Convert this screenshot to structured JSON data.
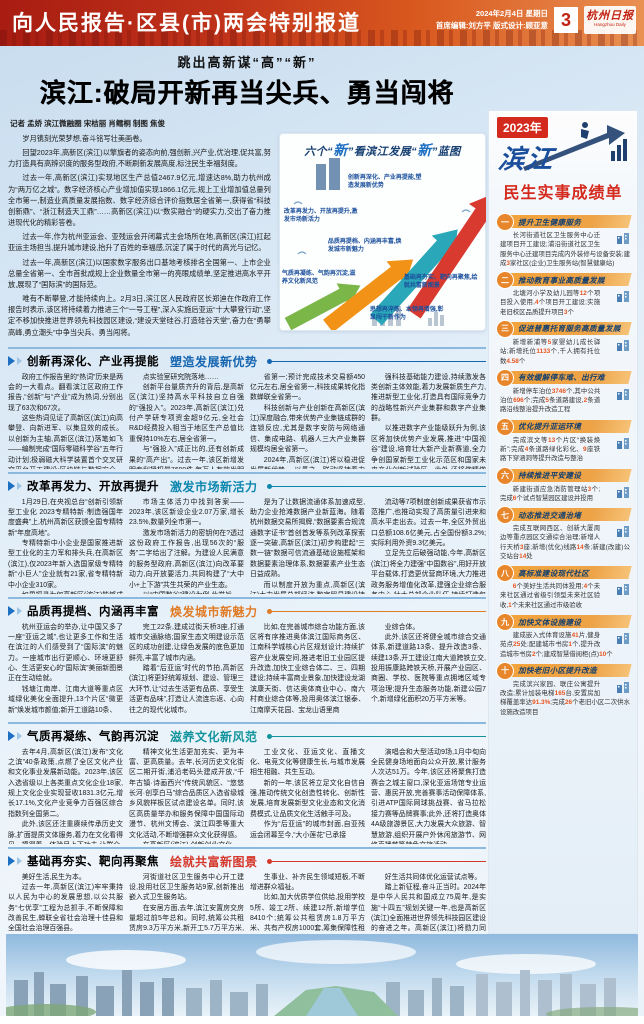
{
  "banner": {
    "title": "向人民报告·区县(市)两会特别报道",
    "date": "2024年2月4日 星期日",
    "editors": "首席编辑:刘方平 版式设计:顾亚意",
    "page_number": "3",
    "paper_name": "杭州日报",
    "paper_name_en": "Hangzhou Daily"
  },
  "article": {
    "kicker": "跳出高新谋“高”“新”",
    "headline": "滨江:破局开新再当尖兵、勇当闯将",
    "byline": "记者 孟娇 滨江微融圈 宋桔丽 肖鳕桐 制图 焦俊",
    "intro": [
      "岁月镌刻光荣梦想,奋斗铭写壮美画卷。",
      "回望2023年,高新区(滨江)以擎旗者的姿态向前,强创新,兴产业,优治理,促共富,努力打造具有高辨识度的服务型政府,不断刷新发展高度,标注民生幸福刻度。",
      "过去一年,高新区(滨江)实现地区生产总值2467.9亿元,增速达8%,助力杭州成为“两万亿之城”。数字经济核心产业增加值实现1866.1亿元,规上工业增加值总量列全市第一,制造业高质量发展指数、数字经济综合评价指数居全省第一,获得省“科技创新鼎”、“浙江制造天工鼎”……高新区(滨江)以“数实融合”的硬实力,交出了奋力推进现代化的精彩答卷。",
      "过去一年,作为杭州亚运会、亚残运会开闭幕式主会场所在地,高新区(滨江)扛起亚运主场担当,提升城市建设,抬升了百姓的幸福感,沉淀了属于时代的高光与记忆。",
      "过去一年,高新区(滨江)以国家数字服务出口基地考核排名全国第一、上市企业总量全省第一、全市首批成规上企业数量全市第一的亮眼成绩单,坚定推进高水平开放,展现了“国际滨”的国际范。",
      "唯有不断攀登,才能持续向上。2月3日,滨江区人民政府区长郑迪在作政府工作报告时表示,该区将持续着力推进三个“一号工程”,深入实施后亚运“十大攀登行动”,坚定不移加快推进世界领先科技园区建设,“建设天堂硅谷,打造硅谷天堂”,奋力在“勇攀高峰,勇立潮头”中争当尖兵、勇当闯将。"
    ],
    "sections": [
      {
        "title": "创新再深化、产业再提能",
        "subtitle": "塑造发展新优势",
        "color": "#1565b0",
        "columns": [
          "政府工作报告里的“热词”历来是两会的一大看点。翻看滨江区政府工作报告,“创新”与“产业”成为热词,分别出现了63次和67次。\n这些热词见证了高新区(滨江)向高攀登、向新进军、以集显效的成长。以创新为主轴,高新区(滨江)落笔如飞——编制完成“国际零磁科学谷”五年行动计划;极弱磁大科学装置首个交叉研究平台开工建设;区块链与数据安全、心血管植入器械两个全国重",
          "点实验室研究院落地……\n创新平台量质齐升的背后,是高新区(滨江)坚持高水平科技自立自强的“强投入”。2023年,高新区(滨江)兑付产学研专项资金超9亿元,全社会R&D经费投入相当于地区生产总值比重保持10%左右,居全省第一。\n与“强投入”成正比的,还有创新成果的“高产出”。过去一年,该区新增发明专利授权量7699件,每万人有效发明专利拥有量超700件,均保持全",
          "省第一;预计完成技术交易额450亿元左右,居全省第一,科技成果转化指数蝉联全省第一。\n科技创新与产业创新在高新区(滨江)深度融合,带来优势产业集链成群的连锁反应,尤其是数字安防与网络通信、集成电路、机器人三大产业集群规模均居全省第一。\n2024年,高新区(滨江)将以稳进促发展新优势,一以贯之、联动坚持着力稳中求进扩增量,以科技创新为引领,加",
          "强科技基础能力建设,持续激发各类创新主体效能,着力发展新质生产力,推进新型工业化,打造具有国际竞争力的战略性新兴产业集群和数字产业集群。\n以推进数字产业能级跃升为例,该区将加快优势产业发展,推进“中国视谷”建设,培育壮大新产业新赛道,全力争创国家新型工业化示范区和国家未来产业创新试验区。此外,还将做精做强特色小镇,深化完善楼宇、园区特色园(区)协同发展机制。"
        ]
      },
      {
        "title": "改革再发力、开放再提升",
        "subtitle": "激发市场新活力",
        "color": "#0d86ae",
        "columns": [
          "1月29日,在央视总台“创新引领新型工业化 2023专精特新·制造强国年度盛典”上,杭州高新区获颁全国专精特新“年度高地”。\n专精特新中小企业是国家推进新型工业化的主力军和排头兵,在高新区(滨江),仅2023年新入选国家级专精特新“小巨人”企业就有21家,省专精特新中小企业310家。\n如果探寻为何高新区(滨江)能够成为全国专精特新高地,或许可以从",
          "市场主体活力中找到答案——2023年,该区新设企业2.07万家,增长23.5%,数量列全市第一。\n激发市场新活力的密钥何在?透过这份政府工作报告,出现56次的“服务”二字给出了注解。为建设人民满意的服务型政府,高新区(滨江)向改革要动力,向开放要活力,共同构建了“大中小+上下游”共生共荣的产业生态。\n以“中国数谷”建设为例,此举旨",
          "是为了让数据流通体系加速成型,助力企业抢滩数据产业新蓝海。随着杭州数据交易所揭牌,“数据要素合规流通数字证书”首创首发等系列改革探索逐一突破,高新区(滨江)初步构建起“三数一链”数据可信流通基础设施框架和数据要素治理体系,数据要素产业生态日益成熟。\n而以制度开放为重点,高新区(滨江)大力发展总部经济,数字贸易建设持续发力,跨境支付、便利化数据跨境",
          "流动等7项制度创新成果获省市示范推广,也推动实现了高质量引进来和高水平走出去。过去一年,全区外贸出口总额108.6亿美元,占全国份额3.2%;实际利用外资9.3亿美元。\n立足先立后破强动能,今年,高新区(滨江)将全力建强“中国数谷”,用好开放平台载体,打造更优营商环境,大力推进政务服务增值化改革,建强企业综合服务中心,壮大总部企业队伍,持续打造包容开放的市场环境。"
        ]
      },
      {
        "title": "品质再提档、内涵再丰富",
        "subtitle": "焕发城市新魅力",
        "color": "#e07b26",
        "columns": [
          "杭州亚运会的举办,让中国又多了一座“亚运之城”,也让更多工作和生活在滨江的人们感受到了“国际滨”的魅力。一座城市出行更顺心、环境更舒心、生活更安心的“国际滨”美丽新图景正在生动绘就。\n钱塘江南岸、江南大道等重点区域绿化美化全面提升,13个片区“微更新”焕发城市颜值;新开工道路10条、",
          "完工22条,建成过街天桥3座,打通城市交通脉络;国家生态文明建设示范区的成功创建,让绿色发展的底色更加鲜亮,丰富了城市内涵。\n踏着“后亚运”时代的节拍,高新区(滨江)将更好统筹规划、建设、管理三大环节,让“过去生活更有品质、享受生活更有品味”,打造让人流连忘返、心向往之的现代化城市。",
          "比如,在完善城市综合功能方面,该区将有序推进奥体滨江国际商务区、江南科学城核心片区规划设计;持续扩容产业发展空间,推进老旧工业园区提升改造,加快工业综合体二、三、四期建设;持续丰富商业景象,加快建设龙湖滨康天街、信达奥体商业中心、南六村商业综合体等,投用奥体滨江银泰、江南摩天花园、宝龙山语里商",
          "业综合体。\n此外,该区还将健全城市综合交通体系,新建道路13条、提升改造3条、续建13条,开工建设江南大道跨铁立交,投用振康路跨铁天桥,开展产业园区、商圈、学校、医院等重点拥堵区域专项治理;提升生态服务功能,新建公园7个,新增绿化面积20万平方米等。"
        ]
      },
      {
        "title": "气质再凝练、气韵再沉淀",
        "subtitle": "滋养文化新风范",
        "color": "#12949c",
        "columns": [
          "去年4月,高新区(滨江)发布“文化之滨”40条政策,点燃了全区文化产业和文化事业发展新动能。2023年,该区入选省级以上各类重点文化企业18家,规上文化企业实现营收1831.3亿元,增长17.1%,文化产业竞争力百强区综合指数列全国第二。\n此外,该区还注重赓续传承历史文脉,扩面提质文体服务,着力在文化看得见、摸得着、体验足上下功夫,让群众",
          "精神文化生活更加充实、更为丰富、更高质量。去年,长河历史文化街区二期开街,浦沿老码头建成开放,“千年古镇·诗画西兴”传统风貌区、“悠悠长河·创享白马”综合品质区入选省级城乡风貌样板区试点建设名单。同时,该区高质量举办和服务保障中国国际动漫节、杭州文博会、滨江四季等重大文化活动,不断增强群众文化获得感。\n在高新区(滨江),创新创业文化、",
          "工业文化、亚运文化、直播文化、电竞文化等健康生长,与城市发展相生相融、共生互动。\n新的一年,该区将立足文化自信自强,推动传统文化创造性转化、创新性发展,培育发展新型文化业态和文化消费模式,让品质文化生活触手可及。\n作为“后亚运”的城市封面,自亚残运会闭幕至今,“大小莲花”已承接",
          "演唱会和大型活动9场,1月中旬向全民健身场地面向公众开放,累计服务人次达51万。今年,该区还将聚焦打造赛会之城主窗口,深化亚运场馆专业运营、惠民开放,完善赛事活动保障体系,引进ATP国际网球挑战赛、省马拉松接力赛等品牌赛事;此外,还将打造奥体4A级旅游景区,大力发展大众旅游、智慧旅游,组织开展户外休闲旅游节、网络直播节等特色文旅活动。"
        ]
      },
      {
        "title": "基础再夯实、靶向再聚焦",
        "subtitle": "绘就共富新图景",
        "color": "#d5382c",
        "columns": [
          "美好生活,民生为本。\n过去一年,高新区(滨江)牢牢秉持以人民为中心的发展思想,以公共服务“七优享”工程为总抓手,不断保障和改善民生,蝉联全省社会治理十佳县和全国社会治理百强县。\n去年,该区投用学校11所,竣工3所,续建10所,新开工5所,新增学位11160个;医联体建设加快推进,浦沿街道社区卫生服务中心主体结顶,长",
          "河街道社区卫生服务中心开工建设,投用社区卫生服务站9家,创新推出嵌入式卫生服务站。\n在安居方面,去年,滨江安置房交房量超过前5年总和。同时,统筹公共租赁房9.3万平方米,新开工5.7万平方米,筹集保障性租赁住房3629套(间),配租人才共有产权保障房632套。\n新的一年,高新区(滨江)将围绕群众急难愁盼持续发力,办好各项民",
          "生事业、补齐民生领域短板,不断增进群众福祉。\n比如,加大优质学位供给,投用学校5所、竣工2所、续建12所,新增学位8410个;统筹公共租赁房1.8万平方米、共有产权房1000套,筹集保障性租赁住房3100套(间);深化托幼一体化集成改革,力争托幼一体幼儿园覆盖率超70%;大力推进全域未来社区建设,新建美好生活共同体不少于6个,实施美",
          "好生活共同体优化运营试点等。\n踏上新征程,奋斗正当时。2024年是中华人民共和国成立75周年,是实施“十四五”规划关键一年,也是高新区(滨江)全面推进世界领先科技园区建设的奋进之年。高新区(滨江)将勠力同心、锐意进取,敢打头阵、勇当先锋、争作示范,推动世界领先科技园区建设夺得突破性进展、标志性成效,奋力谱写中国式现代化滨江新篇章!"
        ]
      }
    ]
  },
  "infographic": {
    "title": "六个“新”看滨江发展“新”蓝图",
    "items": [
      "创新再深化、产业再提能,塑造发展新优势",
      "改革再发力、开放再提升,激发市场新活力",
      "品质再提档、内涵再丰富,焕发城市新魅力",
      "气质再凝练、气韵再沉淀,滋养文化新风范",
      "基础再夯实、靶向再聚焦,绘就共富新图景",
      "思想再淬炼、本领再增强,彰显闯干新作为"
    ]
  },
  "sidebar": {
    "year": "2023年",
    "region": "滨江",
    "title": "民生实事成绩单",
    "items": [
      {
        "num": "一",
        "title": "提升卫生健康服务",
        "icon": "clinic-icon",
        "text": "长河街道社区卫生服务中心迁建项目开工建设;浦沿街道社区卫生服务中心迁建项目完成内外装修与设备安装;建成3家社区(企业)卫生服务站(智慧健康站)"
      },
      {
        "num": "二",
        "title": "推动教育事业高质量发展",
        "icon": "school-icon",
        "text": "北塘河小学及幼儿园等12个项目投入使用,4个项目开工建设;实施老旧校区品质提升项目3个"
      },
      {
        "num": "三",
        "title": "促进普惠托育服务高质量发展",
        "icon": "family-icon",
        "text": "新增新浦等5家婴幼儿成长驿站;新增托位1133个,千人拥有托位数4.58个"
      },
      {
        "num": "四",
        "title": "有效缓解停车难、出行难",
        "icon": "car-icon",
        "text": "新增停车泊位3746个,其中公共泊位696个;完成5条道路建设,2条道路沿线整治提升改造工程"
      },
      {
        "num": "五",
        "title": "优化提升亚运环境",
        "icon": "city-icon",
        "text": "完成滨文等13个片区“换装焕新”;完成4条道路绿化彩化、9座铁路下穿涵洞等提升改造与整治"
      },
      {
        "num": "六",
        "title": "持续推进平安建设",
        "icon": "shield-icon",
        "text": "新建街道应急消防管理站3个;完成6个试点智慧园区建设并投用"
      },
      {
        "num": "七",
        "title": "动态推进交通治堵",
        "icon": "bus-icon",
        "text": "完成互联网西区、创新大厦周边等重点园区交通综合治理;新增人行天桥3座;新增(优化)线路14条;新建(改建)公交站台14处"
      },
      {
        "num": "八",
        "title": "高标准建设现代社区",
        "icon": "community-icon",
        "text": "6个美好生活共同体投用;4个未来社区通过省级引领型未来社区验收,1个未来社区通过市级验收"
      },
      {
        "num": "九",
        "title": "加快文体设施建设",
        "icon": "book-icon",
        "text": "建成嵌入式体育设施41片,健身苑点25处;配建城市书房1个,提升改造城市书房2个;建成智慧借阅柜(点)10个"
      },
      {
        "num": "十",
        "title": "加快老旧小区提升改造",
        "icon": "building-icon",
        "text": "完成滨兴家园、联庄公寓提升改造;累计加装电梯165台,安置房加梯覆盖率达91.3%;完成26个老旧小区二次供水设施改造项目"
      }
    ]
  }
}
